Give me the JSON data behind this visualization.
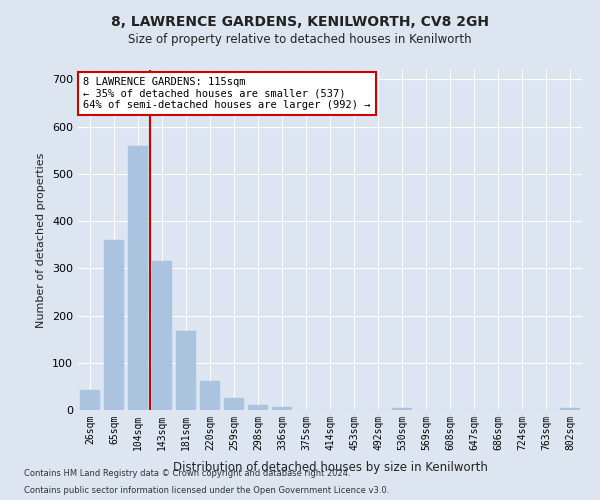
{
  "title": "8, LAWRENCE GARDENS, KENILWORTH, CV8 2GH",
  "subtitle": "Size of property relative to detached houses in Kenilworth",
  "xlabel": "Distribution of detached houses by size in Kenilworth",
  "ylabel": "Number of detached properties",
  "bar_labels": [
    "26sqm",
    "65sqm",
    "104sqm",
    "143sqm",
    "181sqm",
    "220sqm",
    "259sqm",
    "298sqm",
    "336sqm",
    "375sqm",
    "414sqm",
    "453sqm",
    "492sqm",
    "530sqm",
    "569sqm",
    "608sqm",
    "647sqm",
    "686sqm",
    "724sqm",
    "763sqm",
    "802sqm"
  ],
  "bar_values": [
    43,
    360,
    560,
    315,
    168,
    62,
    25,
    10,
    6,
    0,
    0,
    0,
    0,
    5,
    0,
    0,
    0,
    0,
    0,
    0,
    5
  ],
  "bar_color": "#aac4e0",
  "bar_edge_color": "#aac4e0",
  "background_color": "#dde5f0",
  "grid_color": "#ffffff",
  "vline_x": 2.5,
  "vline_color": "#cc0000",
  "annotation_text": "8 LAWRENCE GARDENS: 115sqm\n← 35% of detached houses are smaller (537)\n64% of semi-detached houses are larger (992) →",
  "annotation_box_color": "#ffffff",
  "annotation_box_edge": "#cc0000",
  "ylim": [
    0,
    720
  ],
  "yticks": [
    0,
    100,
    200,
    300,
    400,
    500,
    600,
    700
  ],
  "footnote1": "Contains HM Land Registry data © Crown copyright and database right 2024.",
  "footnote2": "Contains public sector information licensed under the Open Government Licence v3.0."
}
